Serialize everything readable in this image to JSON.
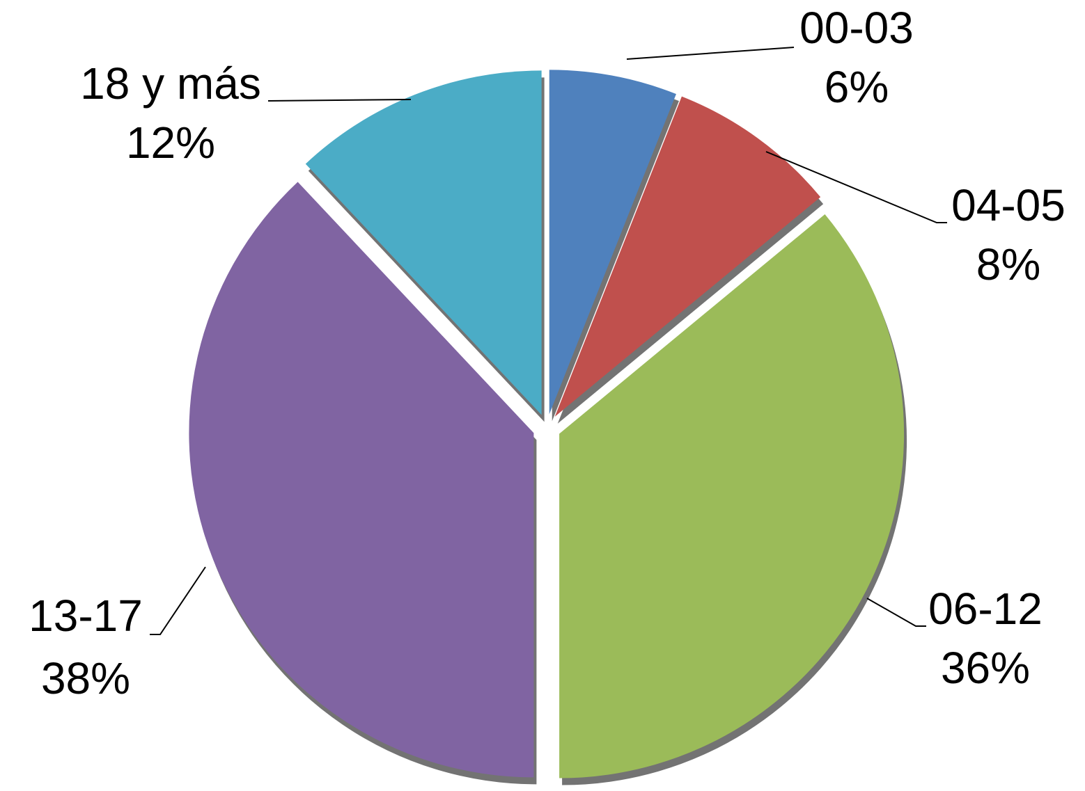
{
  "chart_data": {
    "type": "pie",
    "categories": [
      "00-03",
      "04-05",
      "06-12",
      "13-17",
      "18 y más"
    ],
    "values": [
      6,
      8,
      36,
      38,
      12
    ],
    "value_labels": [
      "6%",
      "8%",
      "36%",
      "38%",
      "12%"
    ],
    "colors": [
      "#4f81bd",
      "#c0504d",
      "#9bbb59",
      "#8064a2",
      "#4bacc6"
    ]
  }
}
